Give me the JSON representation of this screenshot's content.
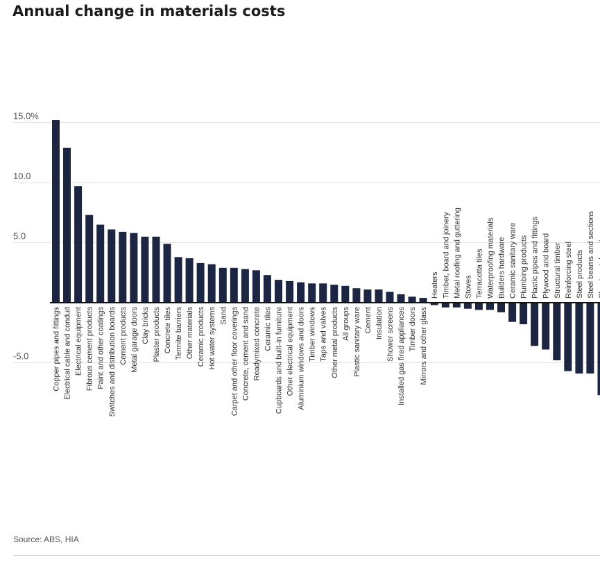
{
  "chart_data": {
    "type": "bar",
    "title": "Annual change in materials costs",
    "source": "Source: ABS, HIA",
    "xlabel": "",
    "ylabel": "",
    "ylim": [
      -7.8,
      15.3
    ],
    "yticks": [
      {
        "value": 15,
        "label": "15.0%"
      },
      {
        "value": 10,
        "label": "10.0"
      },
      {
        "value": 5,
        "label": "5.0"
      },
      {
        "value": -5,
        "label": "-5.0"
      }
    ],
    "grid": true,
    "bar_color": "#1c2541",
    "categories": [
      "Copper pipes and fittings",
      "Electrical cable and conduit",
      "Electrical equipment",
      "Fibrous cement products",
      "Paint and other coatings",
      "Switches and distribution boards",
      "Cement products",
      "Metal garage doors",
      "Clay bricks",
      "Plaster products",
      "Concrete tiles",
      "Termite barriers",
      "Other materials",
      "Ceramic products",
      "Hot water systems",
      "Sand",
      "Carpet and other floor coverings",
      "Concrete, cement and sand",
      "Readymixed concrete",
      "Ceramic tiles",
      "Cupboards and built-in furniture",
      "Other electrical equipment",
      "Aluminium windows and doors",
      "Timber windows",
      "Taps and valves",
      "Other metal products",
      "All groups",
      "Plastic sanitary ware",
      "Cement",
      "Insulation",
      "Shower screens",
      "Installed gas fired appliances",
      "Timber doors",
      "Mirrors and other glass",
      "Heaters",
      "Timber, board and joinery",
      "Metal roofing and guttering",
      "Stoves",
      "Terracotta tiles",
      "Waterproofing materials",
      "Builders hardware",
      "Ceramic sanitary ware",
      "Plumbing products",
      "Plastic pipes and fittings",
      "Plywood and board",
      "Structural timber",
      "Reinforcing steel",
      "Steel products",
      "Steel beams and sections",
      "Sheet metal sanitary ware"
    ],
    "values": [
      15.2,
      12.9,
      9.7,
      7.3,
      6.5,
      6.1,
      5.9,
      5.8,
      5.5,
      5.5,
      4.9,
      3.8,
      3.7,
      3.3,
      3.2,
      2.9,
      2.9,
      2.8,
      2.7,
      2.3,
      1.9,
      1.8,
      1.7,
      1.6,
      1.6,
      1.5,
      1.4,
      1.2,
      1.1,
      1.1,
      0.9,
      0.7,
      0.5,
      0.4,
      -0.2,
      -0.4,
      -0.4,
      -0.5,
      -0.6,
      -0.6,
      -0.8,
      -1.6,
      -1.8,
      -3.6,
      -3.9,
      -4.8,
      -5.7,
      -5.9,
      -5.9,
      -7.7
    ]
  }
}
